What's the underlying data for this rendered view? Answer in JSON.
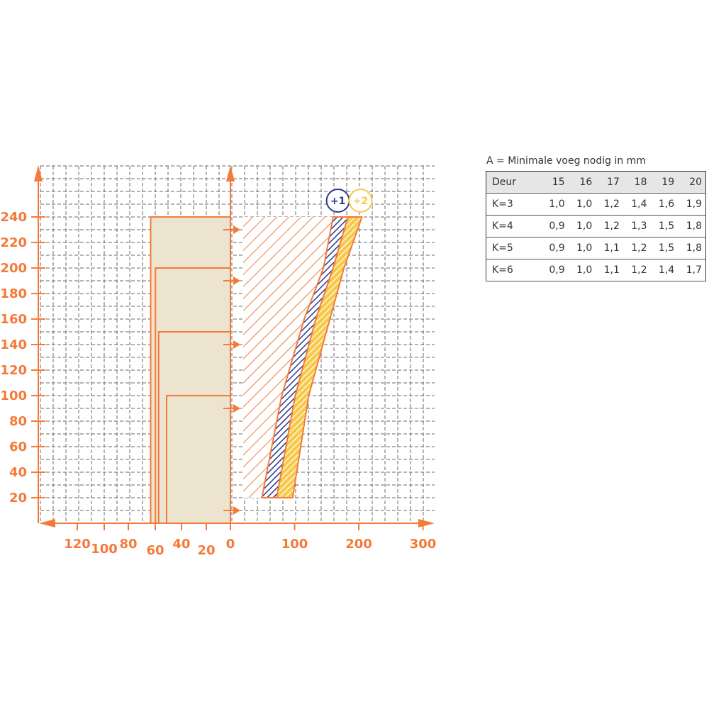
{
  "chart_data": {
    "type": "area",
    "y_ticks": [
      "20",
      "40",
      "60",
      "80",
      "100",
      "120",
      "140",
      "160",
      "180",
      "200",
      "220",
      "240"
    ],
    "x_ticks_left": [
      "120",
      "100",
      "80",
      "60",
      "40",
      "20",
      "0"
    ],
    "x_ticks_right": [
      "100",
      "200",
      "300"
    ],
    "height_zones": [
      {
        "from": 0,
        "to": 240,
        "left_edge": 50
      },
      {
        "from": 0,
        "to": 200,
        "left_edge": 47
      },
      {
        "from": 0,
        "to": 150,
        "left_edge": 45
      },
      {
        "from": 0,
        "to": 100,
        "left_edge": 40
      }
    ],
    "zone_markers_y": [
      10,
      90,
      140,
      190,
      230
    ],
    "forbidden_area": {
      "x_from": 20,
      "y_from": 20,
      "y_to": 240
    },
    "series": [
      {
        "name": "+1",
        "lower": [
          [
            49,
            20
          ],
          [
            80,
            100
          ],
          [
            115,
            160
          ],
          [
            145,
            200
          ],
          [
            160,
            240
          ]
        ],
        "upper": [
          [
            72,
            20
          ],
          [
            101,
            100
          ],
          [
            133,
            160
          ],
          [
            160,
            200
          ],
          [
            183,
            240
          ]
        ],
        "color": "#2b3a8c"
      },
      {
        "name": "+2",
        "lower": [
          [
            72,
            20
          ],
          [
            101,
            100
          ],
          [
            133,
            160
          ],
          [
            160,
            200
          ],
          [
            183,
            240
          ]
        ],
        "upper": [
          [
            97,
            20
          ],
          [
            122,
            100
          ],
          [
            155,
            160
          ],
          [
            177,
            200
          ],
          [
            205,
            240
          ]
        ],
        "color": "#f7c948"
      }
    ],
    "colors": {
      "accent": "#f47a3a",
      "zone_fill": "#ede4cf",
      "grid": "#6a6a6a"
    }
  },
  "table": {
    "caption": "A = Minimale voeg nodig in mm",
    "headers": [
      "Deur",
      "15",
      "16",
      "17",
      "18",
      "19",
      "20"
    ],
    "rows": [
      [
        "K=3",
        "1,0",
        "1,0",
        "1,2",
        "1,4",
        "1,6",
        "1,9"
      ],
      [
        "K=4",
        "0,9",
        "1,0",
        "1,2",
        "1,3",
        "1,5",
        "1,8"
      ],
      [
        "K=5",
        "0,9",
        "1,0",
        "1,1",
        "1,2",
        "1,5",
        "1,8"
      ],
      [
        "K=6",
        "0,9",
        "1,0",
        "1,1",
        "1,2",
        "1,4",
        "1,7"
      ]
    ]
  }
}
